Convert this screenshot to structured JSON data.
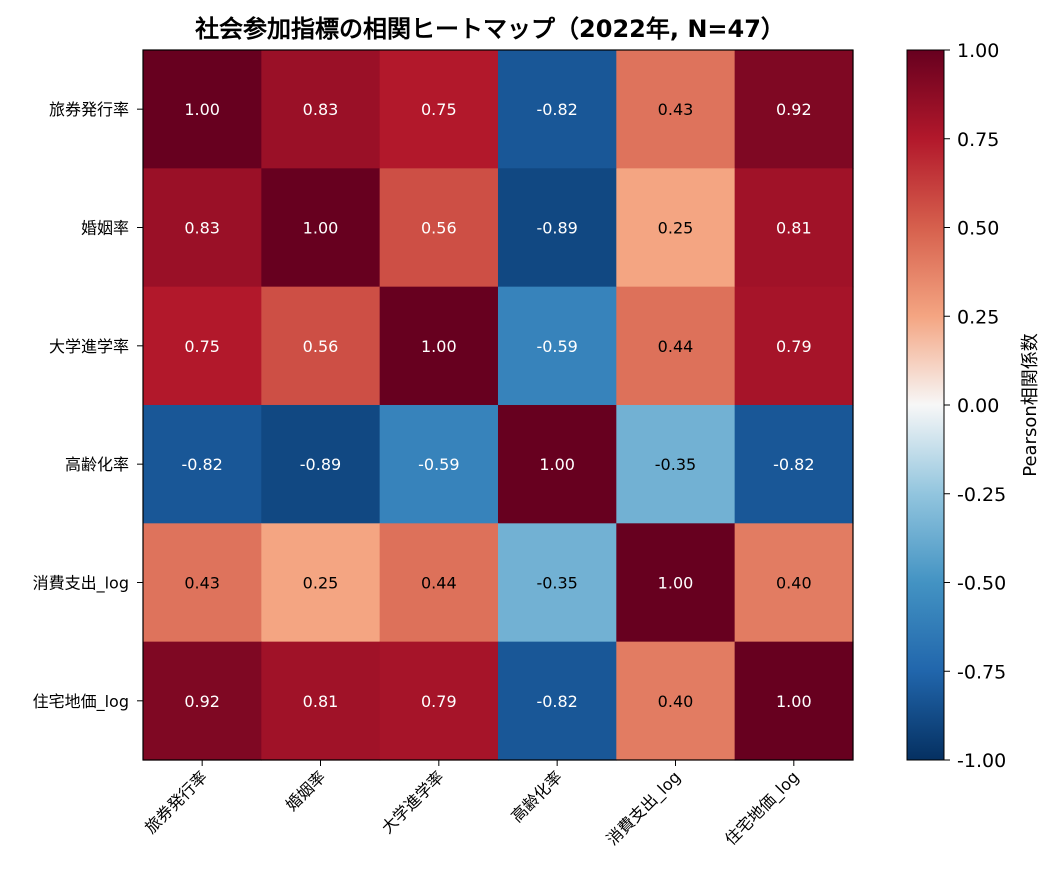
{
  "chart_data": {
    "type": "heatmap",
    "title": "社会参加指標の相関ヒートマップ（2022年, N=47）",
    "row_labels": [
      "旅券発行率",
      "婚姻率",
      "大学進学率",
      "高齢化率",
      "消費支出_log",
      "住宅地価_log"
    ],
    "col_labels": [
      "旅券発行率",
      "婚姻率",
      "大学進学率",
      "高齢化率",
      "消費支出_log",
      "住宅地価_log"
    ],
    "values": [
      [
        1.0,
        0.83,
        0.75,
        -0.82,
        0.43,
        0.92
      ],
      [
        0.83,
        1.0,
        0.56,
        -0.89,
        0.25,
        0.81
      ],
      [
        0.75,
        0.56,
        1.0,
        -0.59,
        0.44,
        0.79
      ],
      [
        -0.82,
        -0.89,
        -0.59,
        1.0,
        -0.35,
        -0.82
      ],
      [
        0.43,
        0.25,
        0.44,
        -0.35,
        1.0,
        0.4
      ],
      [
        0.92,
        0.81,
        0.79,
        -0.82,
        0.4,
        1.0
      ]
    ],
    "value_format": "2 decimals",
    "colormap": "RdBu_r",
    "vmin": -1.0,
    "vmax": 1.0,
    "colorbar": {
      "label": "Pearson相関係数",
      "ticks": [
        "1.00",
        "0.75",
        "0.50",
        "0.25",
        "0.00",
        "-0.25",
        "-0.50",
        "-0.75",
        "-1.00"
      ],
      "tick_values": [
        1.0,
        0.75,
        0.5,
        0.25,
        0.0,
        -0.25,
        -0.5,
        -0.75,
        -1.0
      ]
    },
    "grid": false
  }
}
